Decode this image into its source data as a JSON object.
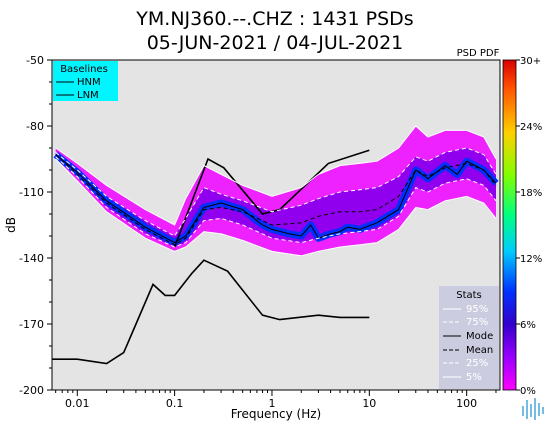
{
  "chart_data": {
    "type": "line",
    "title": "YM.NJ360.--.CHZ : 1431 PSDs",
    "subtitle": "05-JUN-2021 / 04-JUL-2021",
    "xlabel": "Frequency (Hz)",
    "ylabel": "dB",
    "xscale": "log",
    "xlim": [
      0.0055,
      220
    ],
    "ylim": [
      -200,
      -50
    ],
    "x_ticks": [
      0.01,
      0.1,
      1,
      10,
      100
    ],
    "x_tick_labels": [
      "0.01",
      "0.1",
      "1",
      "10",
      "100"
    ],
    "y_ticks": [
      -50,
      -80,
      -110,
      -140,
      -170,
      -200
    ],
    "y_tick_labels": [
      "-50",
      "-80",
      "-110",
      "-140",
      "-170",
      "-200"
    ],
    "colorbar": {
      "title": "PSD PDF",
      "tick_labels": [
        "30+",
        "24%",
        "18%",
        "12%",
        "6%",
        "0%"
      ],
      "colors": [
        "#d90000",
        "#ff4d00",
        "#ffd000",
        "#80ff00",
        "#00ff80",
        "#00ccff",
        "#0033ff",
        "#3300cc",
        "#9900ff",
        "#ff00ff"
      ]
    },
    "baselines_legend": {
      "title": "Baselines",
      "entries": [
        "HNM",
        "LNM"
      ],
      "background": "#00f5ff"
    },
    "stats_legend": {
      "title": "Stats",
      "entries": [
        "95%",
        "75%",
        "Mode",
        "Mean",
        "25%",
        "5%"
      ],
      "background": "#cccce0"
    },
    "series": [
      {
        "name": "HNM",
        "x": [
          0.1,
          0.22,
          0.32,
          0.8,
          1.2,
          3.8,
          10
        ],
        "values": [
          -135,
          -95,
          -99,
          -120,
          -118,
          -97,
          -91
        ]
      },
      {
        "name": "LNM",
        "x": [
          0.0055,
          0.01,
          0.02,
          0.03,
          0.06,
          0.08,
          0.1,
          0.15,
          0.2,
          0.35,
          0.8,
          1.2,
          3,
          5,
          10
        ],
        "values": [
          -186,
          -186,
          -188,
          -183,
          -152,
          -157,
          -157,
          -147,
          -141,
          -146,
          -166,
          -168,
          -166,
          -167,
          -167
        ]
      },
      {
        "name": "95%",
        "x": [
          0.006,
          0.01,
          0.02,
          0.05,
          0.1,
          0.13,
          0.2,
          0.3,
          0.5,
          1,
          2,
          3,
          5,
          8,
          12,
          20,
          30,
          40,
          60,
          100,
          150,
          200
        ],
        "values": [
          -90,
          -97,
          -107,
          -118,
          -125,
          -113,
          -98,
          -102,
          -107,
          -112,
          -108,
          -102,
          -98,
          -97,
          -96,
          -90,
          -80,
          -85,
          -82,
          -82,
          -85,
          -95
        ]
      },
      {
        "name": "75%",
        "x": [
          0.006,
          0.01,
          0.02,
          0.05,
          0.1,
          0.13,
          0.2,
          0.3,
          0.5,
          1,
          2,
          3,
          5,
          8,
          12,
          20,
          30,
          40,
          60,
          100,
          150,
          200
        ],
        "values": [
          -92,
          -100,
          -112,
          -123,
          -130,
          -122,
          -108,
          -111,
          -114,
          -119,
          -116,
          -113,
          -110,
          -109,
          -108,
          -103,
          -94,
          -96,
          -92,
          -90,
          -93,
          -102
        ]
      },
      {
        "name": "Mode",
        "x": [
          0.006,
          0.01,
          0.02,
          0.05,
          0.1,
          0.13,
          0.2,
          0.3,
          0.5,
          0.8,
          1,
          1.5,
          2,
          2.5,
          3,
          4,
          5,
          6,
          8,
          12,
          20,
          30,
          40,
          60,
          80,
          100,
          150,
          200
        ],
        "values": [
          -93,
          -101,
          -114,
          -126,
          -133,
          -130,
          -117,
          -115,
          -118,
          -125,
          -127,
          -129,
          -130,
          -125,
          -131,
          -129,
          -128,
          -126,
          -127,
          -124,
          -118,
          -100,
          -104,
          -98,
          -102,
          -96,
          -100,
          -106
        ]
      },
      {
        "name": "Mean",
        "x": [
          0.006,
          0.01,
          0.02,
          0.05,
          0.1,
          0.13,
          0.2,
          0.3,
          0.5,
          1,
          2,
          3,
          5,
          8,
          12,
          20,
          30,
          40,
          60,
          100,
          150,
          200
        ],
        "values": [
          -93,
          -102,
          -115,
          -127,
          -134,
          -131,
          -118,
          -117,
          -119,
          -125,
          -124,
          -121,
          -119,
          -119,
          -118,
          -112,
          -100,
          -103,
          -99,
          -97,
          -100,
          -107
        ]
      },
      {
        "name": "25%",
        "x": [
          0.006,
          0.01,
          0.02,
          0.05,
          0.1,
          0.13,
          0.2,
          0.3,
          0.5,
          1,
          2,
          3,
          5,
          8,
          12,
          20,
          30,
          40,
          60,
          100,
          150,
          200
        ],
        "values": [
          -94,
          -103,
          -117,
          -129,
          -135,
          -133,
          -123,
          -122,
          -125,
          -131,
          -133,
          -131,
          -129,
          -128,
          -127,
          -121,
          -108,
          -110,
          -106,
          -104,
          -107,
          -114
        ]
      },
      {
        "name": "5%",
        "x": [
          0.006,
          0.01,
          0.02,
          0.05,
          0.1,
          0.13,
          0.2,
          0.3,
          0.5,
          1,
          2,
          3,
          5,
          8,
          12,
          20,
          30,
          40,
          60,
          100,
          150,
          200
        ],
        "values": [
          -95,
          -105,
          -119,
          -131,
          -137,
          -135,
          -128,
          -129,
          -132,
          -137,
          -139,
          -137,
          -135,
          -134,
          -133,
          -127,
          -117,
          -118,
          -114,
          -112,
          -115,
          -122
        ]
      }
    ]
  }
}
